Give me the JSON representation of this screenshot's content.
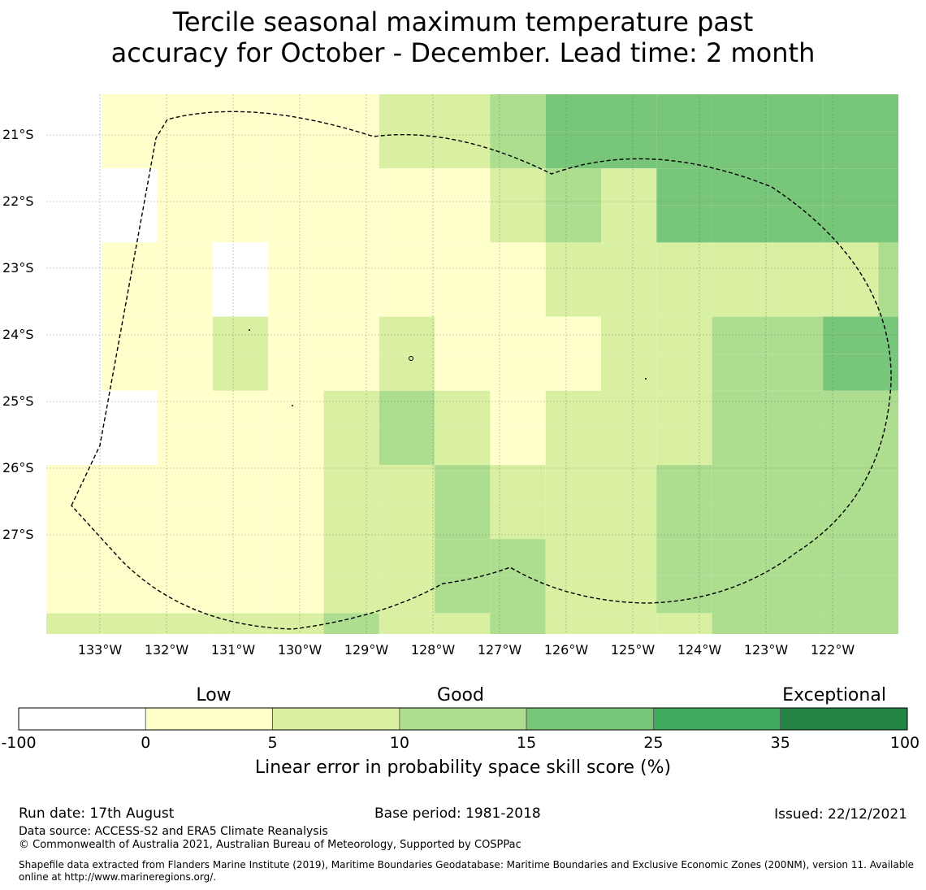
{
  "title": {
    "line1": "Tercile seasonal maximum temperature past",
    "line2": "accuracy for October - December. Lead time: 2 month"
  },
  "map": {
    "lat_labels": [
      "21°S",
      "22°S",
      "23°S",
      "24°S",
      "25°S",
      "26°S",
      "27°S"
    ],
    "lon_labels": [
      "133°W",
      "132°W",
      "131°W",
      "130°W",
      "129°W",
      "128°W",
      "127°W",
      "126°W",
      "125°W",
      "124°W",
      "123°W",
      "122°W"
    ],
    "grid": {
      "cell_size_deg": 0.5,
      "lat_edges_south": [
        20.45,
        27.8
      ],
      "lon_edges_west": [
        133.8,
        121.0
      ],
      "cell_class_rows_north_to_south": [
        "xxxxxxxxxx8e8",
        "x1x10000022",
        "x1100",
        "",
        "",
        "",
        "",
        ""
      ],
      "class_map": [
        "w1111111222333333444444444444444",
        "w1111111222333344444444444444444",
        "w1111111122233333344444444444444",
        "w1111111122222333344444444444444",
        "11111111112222333333444444444444",
        "11111111112222333333444444444444",
        "w1111111112222333333444444444444",
        "w1111111112222333333444444444444"
      ],
      "rows": [
        "nn1111122333444444444444",
        "n111111211233222234444444",
        "n1112211111122223344433344",
        "1n11111113222222222233334",
        "11111112222322122333333334",
        "11111111112122222333333334",
        "222222222222222233333333334",
        "2222223333222222222333333334"
      ]
    },
    "cells": [
      [
        0,
        0,
        1,
        1,
        1,
        1,
        1,
        1,
        1,
        1,
        1,
        1,
        2,
        2,
        2,
        2,
        3,
        3,
        4,
        4,
        4,
        4,
        4,
        4,
        4,
        4,
        4,
        4,
        4,
        4,
        4,
        4
      ],
      [
        0,
        0,
        0,
        0,
        1,
        1,
        1,
        1,
        1,
        1,
        1,
        1,
        1,
        1,
        1,
        1,
        2,
        2,
        3,
        3,
        2,
        2,
        4,
        4,
        4,
        4,
        4,
        4,
        4,
        4,
        4,
        4
      ],
      [
        0,
        1,
        1,
        1,
        1,
        1,
        0,
        1,
        1,
        1,
        1,
        1,
        1,
        1,
        1,
        1,
        1,
        1,
        2,
        2,
        2,
        2,
        2,
        2,
        2,
        2,
        2,
        2,
        2,
        2,
        3,
        3
      ],
      [
        0,
        1,
        1,
        1,
        1,
        2,
        2,
        2,
        1,
        1,
        1,
        1,
        2,
        2,
        1,
        1,
        1,
        1,
        1,
        2,
        2,
        2,
        2,
        2,
        3,
        3,
        3,
        3,
        4,
        4,
        4,
        4
      ],
      [
        0,
        1,
        0,
        1,
        1,
        1,
        1,
        1,
        1,
        2,
        2,
        2,
        3,
        3,
        2,
        2,
        1,
        1,
        2,
        2,
        2,
        2,
        2,
        2,
        3,
        3,
        3,
        3,
        3,
        3,
        3,
        4
      ],
      [
        1,
        1,
        1,
        1,
        1,
        1,
        1,
        1,
        1,
        2,
        2,
        2,
        2,
        2,
        3,
        3,
        2,
        2,
        2,
        2,
        2,
        2,
        3,
        3,
        3,
        3,
        3,
        3,
        3,
        3,
        3,
        3
      ],
      [
        1,
        1,
        1,
        1,
        1,
        1,
        1,
        1,
        1,
        2,
        2,
        2,
        2,
        2,
        3,
        4,
        3,
        2,
        2,
        2,
        2,
        2,
        3,
        3,
        3,
        3,
        3,
        3,
        3,
        3,
        3,
        3
      ],
      [
        2,
        2,
        2,
        2,
        2,
        2,
        2,
        2,
        2,
        3,
        3,
        2,
        2,
        2,
        2,
        2,
        3,
        3,
        2,
        2,
        2,
        2,
        2,
        2,
        3,
        3,
        3,
        3,
        3,
        3,
        3,
        3
      ]
    ],
    "legend_colors": {
      "class0": "#ffffff",
      "class1": "#ffffcc",
      "class2": "#d9f0a3",
      "class3": "#addd8e",
      "class4": "#78c679",
      "class5": "#41ab5d",
      "class6": "#238443"
    }
  },
  "colorbar": {
    "categories": [
      "Low",
      "Good",
      "Exceptional"
    ],
    "ticks": [
      "-100",
      "0",
      "5",
      "10",
      "15",
      "25",
      "35",
      "100"
    ],
    "colors": [
      "#ffffff",
      "#ffffcc",
      "#d9f0a3",
      "#addd8e",
      "#78c679",
      "#41ab5d",
      "#238443"
    ],
    "label": "Linear error in probability space skill score (%)"
  },
  "footer": {
    "run_date": "Run date: 17th August",
    "base_period": "Base period: 1981-2018",
    "issued": "Issued: 22/12/2021",
    "data_source": "Data source: ACCESS-S2 and ERA5 Climate Reanalysis",
    "copyright": "© Commonwealth of Australia 2021, Australian Bureau of Meteorology, Supported by COSPPac",
    "shapefile_line1": "Shapefile data extracted from Flanders Marine Institute (2019), Maritime Boundaries Geodatabase: Maritime Boundaries and Exclusive Economic Zones (200NM), version 11. Available",
    "shapefile_line2": "online at http://www.marineregions.org/."
  }
}
